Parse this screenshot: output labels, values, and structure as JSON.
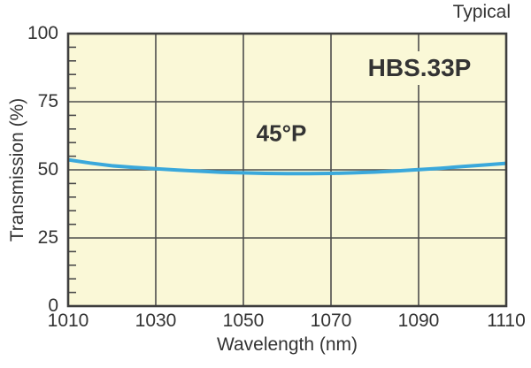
{
  "figure": {
    "corner_note": "Typical"
  },
  "chart_data": {
    "type": "line",
    "title": "",
    "corner_note": "Typical",
    "xlabel": "Wavelength (nm)",
    "ylabel": "Transmission (%)",
    "xlim": [
      1010,
      1110
    ],
    "ylim": [
      0,
      100
    ],
    "x_ticks": [
      "1010",
      "1030",
      "1050",
      "1070",
      "1090",
      "1110"
    ],
    "x_tick_values": [
      1010,
      1030,
      1050,
      1070,
      1090,
      1110
    ],
    "y_ticks": [
      "0",
      "25",
      "50",
      "75",
      "100"
    ],
    "y_tick_values": [
      0,
      25,
      50,
      75,
      100
    ],
    "y_minor_tick_step": 5,
    "grid": true,
    "legend_position": "none",
    "annotations": {
      "incidence_label": "45°P",
      "part_number": "HBS.33P"
    },
    "colors": {
      "line": "#3AA8DB",
      "plot_bg": "#FAF8D7",
      "grid": "#4D4D4D",
      "frame": "#3E3E3E",
      "text": "#333333",
      "page_bg": "#FFFFFF"
    },
    "series": [
      {
        "name": "HBS.33P 45°P transmission",
        "x": [
          1010,
          1015,
          1020,
          1025,
          1030,
          1035,
          1040,
          1045,
          1050,
          1055,
          1060,
          1065,
          1070,
          1075,
          1080,
          1085,
          1090,
          1095,
          1100,
          1105,
          1110
        ],
        "values": [
          53.7,
          52.5,
          51.5,
          50.9,
          50.4,
          49.9,
          49.5,
          49.1,
          48.9,
          48.7,
          48.6,
          48.6,
          48.7,
          48.9,
          49.2,
          49.6,
          50.1,
          50.6,
          51.2,
          51.8,
          52.4
        ]
      }
    ]
  }
}
